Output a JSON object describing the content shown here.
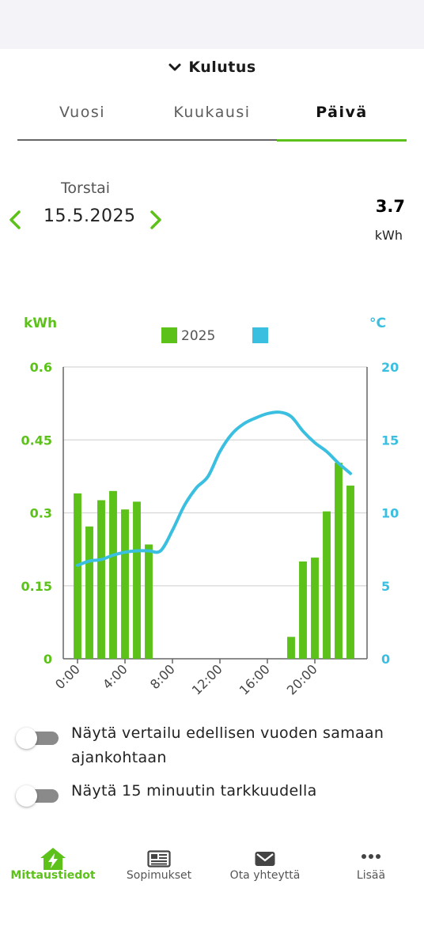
{
  "header": {
    "title": "Kulutus"
  },
  "tabs": [
    {
      "label": "Vuosi",
      "active": false
    },
    {
      "label": "Kuukausi",
      "active": false
    },
    {
      "label": "Päivä",
      "active": true
    }
  ],
  "date_nav": {
    "weekday": "Torstai",
    "date": "15.5.2025",
    "total_value": "3.7",
    "total_unit": "kWh"
  },
  "colors": {
    "accent": "#5cc21a",
    "temperature": "#3bbfe0",
    "grid": "#d6d6d6",
    "axis": "#666666"
  },
  "chart_data": {
    "type": "bar",
    "ylabel_left": "kWh",
    "ylabel_right": "°C",
    "ylim_left": [
      0,
      0.6
    ],
    "ylim_right": [
      0,
      20
    ],
    "yticks_left": [
      "0",
      "0.15",
      "0.3",
      "0.45",
      "0.6"
    ],
    "yticks_right": [
      "0",
      "5",
      "10",
      "15",
      "20"
    ],
    "xticks": [
      "0:00",
      "4:00",
      "8:00",
      "12:00",
      "16:00",
      "20:00"
    ],
    "xlim": [
      -1.2,
      24.4
    ],
    "legend": [
      {
        "label": "2025",
        "color": "#5cc21a"
      },
      {
        "label": "",
        "color": "#3bbfe0"
      }
    ],
    "legend_position": "top-center",
    "grid": true,
    "series": [
      {
        "type": "bar",
        "axis": "left",
        "hours": [
          0,
          1,
          2,
          3,
          4,
          5,
          6,
          7,
          8,
          9,
          10,
          11,
          12,
          13,
          14,
          15,
          16,
          17,
          18,
          19,
          20,
          21,
          22,
          23
        ],
        "values": [
          0.34,
          0.272,
          0.326,
          0.345,
          0.307,
          0.323,
          0.235,
          0,
          0,
          0,
          0,
          0,
          0,
          0,
          0,
          0,
          0,
          0,
          0.045,
          0.2,
          0.208,
          0.303,
          0.403,
          0.356
        ]
      },
      {
        "type": "line",
        "axis": "right",
        "x": [
          0,
          1,
          2,
          3,
          4,
          5,
          6,
          7,
          8,
          9,
          10,
          11,
          12,
          13,
          14,
          15,
          16,
          17,
          18,
          19,
          20,
          21,
          22,
          23
        ],
        "values": [
          6.4,
          6.7,
          6.8,
          7.1,
          7.3,
          7.4,
          7.4,
          7.4,
          8.8,
          10.5,
          11.7,
          12.5,
          14.2,
          15.4,
          16.1,
          16.5,
          16.8,
          16.9,
          16.6,
          15.6,
          14.8,
          14.2,
          13.4,
          12.7
        ]
      }
    ]
  },
  "toggles": [
    {
      "label": "Näytä vertailu edellisen vuoden samaan ajankohtaan",
      "on": false
    },
    {
      "label": "Näytä 15 minuutin tarkkuudella",
      "on": false
    }
  ],
  "bottom_nav": [
    {
      "label": "Mittaustiedot",
      "icon": "house-bolt-icon",
      "active": true
    },
    {
      "label": "Sopimukset",
      "icon": "newspaper-icon",
      "active": false
    },
    {
      "label": "Ota yhteyttä",
      "icon": "envelope-icon",
      "active": false
    },
    {
      "label": "Lisää",
      "icon": "more-dots-icon",
      "active": false
    }
  ]
}
